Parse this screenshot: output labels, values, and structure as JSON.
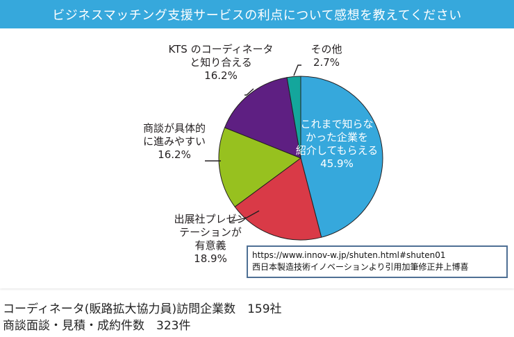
{
  "colors": {
    "header_bg": "#36a8dc",
    "source_border": "#4e6f94"
  },
  "chart_data": {
    "type": "pie",
    "title": "ビジネスマッチング支援サービスの利点について感想を教えてください",
    "start_angle_deg": 0,
    "direction": "clockwise",
    "slices": [
      {
        "lines": [
          "これまで知らな",
          "かった企業を",
          "紹介してもらえる"
        ],
        "pct_label": "45.9%",
        "value": 45.9,
        "color": "#36a8dc"
      },
      {
        "lines": [
          "出展社プレゼン",
          "テーションが",
          "有意義"
        ],
        "pct_label": "18.9%",
        "value": 18.9,
        "color": "#d93a47"
      },
      {
        "lines": [
          "商談が具体的",
          "に進みやすい"
        ],
        "pct_label": "16.2%",
        "value": 16.2,
        "color": "#97c11f"
      },
      {
        "lines": [
          "KTS のコーディネータ",
          "と知り合える"
        ],
        "pct_label": "16.2%",
        "value": 16.2,
        "color": "#5e1f82"
      },
      {
        "lines": [
          "その他"
        ],
        "pct_label": "2.7%",
        "value": 2.7,
        "color": "#14a69c"
      }
    ]
  },
  "source": {
    "url": "https://www.innov-w.jp/shuten.html#shuten01",
    "note": "西日本製造技術イノベーションより引用加筆修正井上博喜"
  },
  "stats": [
    "コーディネータ(販路拡大協力員)訪問企業数　159社",
    "商談面談・見積・成約件数　323件"
  ]
}
